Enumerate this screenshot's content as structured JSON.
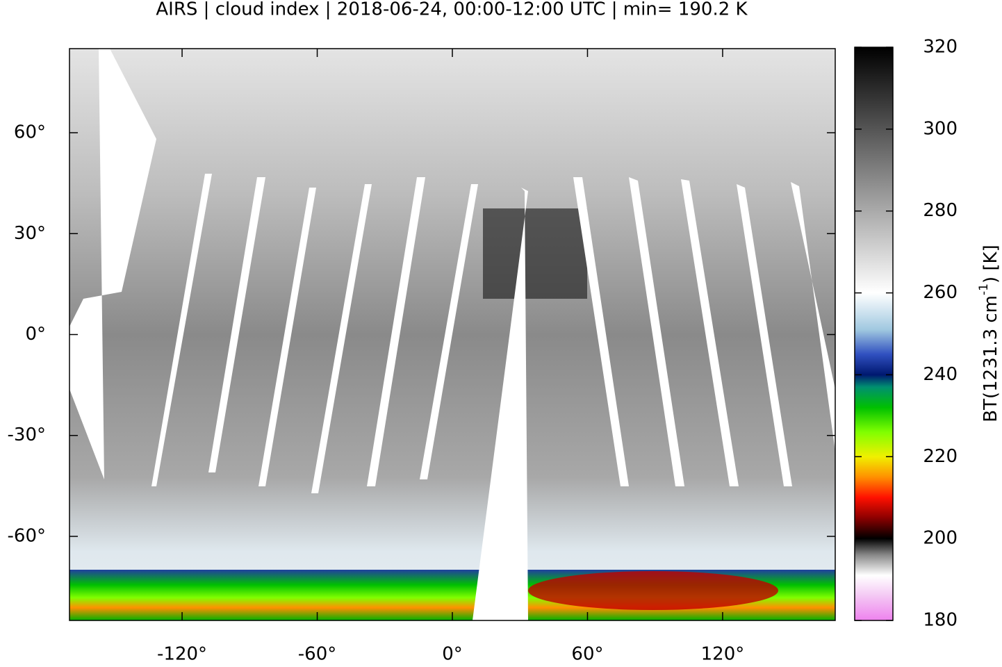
{
  "title": "AIRS | cloud index | 2018-06-24, 00:00-12:00 UTC | min= 190.2 K",
  "map": {
    "xlim": [
      -170,
      170
    ],
    "ylim": [
      -85,
      85
    ],
    "xticks": [
      {
        "value": -120,
        "label": "-120°"
      },
      {
        "value": -60,
        "label": "-60°"
      },
      {
        "value": 0,
        "label": "0°"
      },
      {
        "value": 60,
        "label": "60°"
      },
      {
        "value": 120,
        "label": "120°"
      }
    ],
    "yticks": [
      {
        "value": 60,
        "label": "60°"
      },
      {
        "value": 30,
        "label": "30°"
      },
      {
        "value": 0,
        "label": "0°"
      },
      {
        "value": -30,
        "label": "-30°"
      },
      {
        "value": -60,
        "label": "-60°"
      }
    ]
  },
  "colorbar": {
    "lim": [
      180,
      320
    ],
    "ticks": [
      180,
      200,
      220,
      240,
      260,
      280,
      300,
      320
    ],
    "label": {
      "prefix": "BT(1231.3 cm",
      "superscript": "-1",
      "suffix": ") [K]"
    },
    "colormap": [
      {
        "value": 180,
        "color": "#ee82ee"
      },
      {
        "value": 186,
        "color": "#f4c8f4"
      },
      {
        "value": 191,
        "color": "#ffffff"
      },
      {
        "value": 196,
        "color": "#888888"
      },
      {
        "value": 200,
        "color": "#000000"
      },
      {
        "value": 205,
        "color": "#8b0000"
      },
      {
        "value": 210,
        "color": "#ff1000"
      },
      {
        "value": 215,
        "color": "#ff9000"
      },
      {
        "value": 220,
        "color": "#f0f000"
      },
      {
        "value": 226,
        "color": "#80ff00"
      },
      {
        "value": 232,
        "color": "#00c000"
      },
      {
        "value": 237,
        "color": "#009070"
      },
      {
        "value": 240,
        "color": "#001870"
      },
      {
        "value": 245,
        "color": "#3050c0"
      },
      {
        "value": 251,
        "color": "#a0c8e0"
      },
      {
        "value": 260,
        "color": "#ffffff"
      },
      {
        "value": 320,
        "color": "#000000"
      }
    ]
  }
}
